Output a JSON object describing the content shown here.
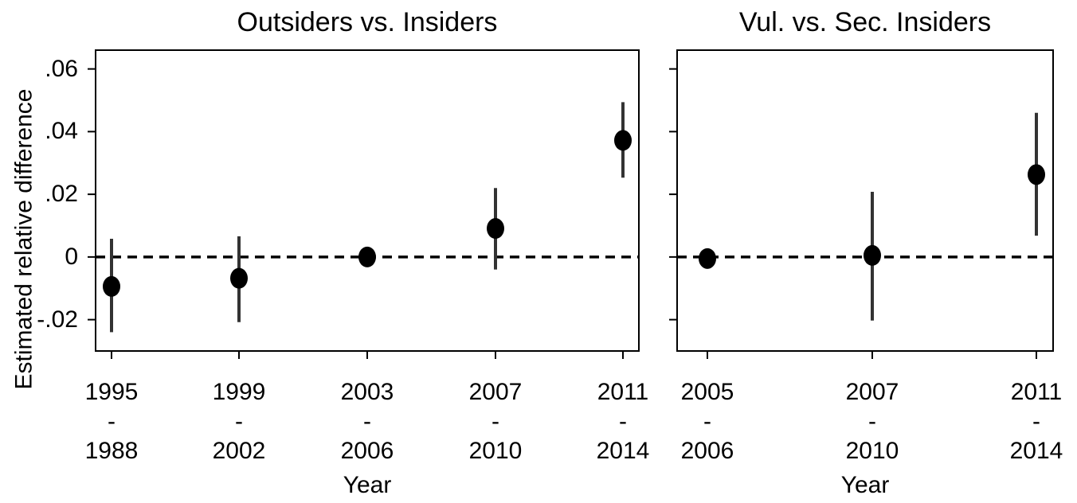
{
  "chart_data": [
    {
      "type": "errorbar",
      "title": "Outsiders vs. Insiders",
      "y_label": "Estimated relative difference",
      "x_label": "Year",
      "categories": [
        "1995\n-\n1988",
        "1999\n-\n2002",
        "2003\n-\n2006",
        "2007\n-\n2010",
        "2011\n-\n2014"
      ],
      "values": [
        -0.0094,
        -0.0068,
        0,
        0.0091,
        0.0372
      ],
      "lower": [
        -0.024,
        -0.0208,
        0,
        -0.004,
        0.0253
      ],
      "upper": [
        0.0058,
        0.0066,
        0,
        0.022,
        0.0494
      ],
      "color": "#000000",
      "bar_color": "#333333",
      "ylim": [
        -0.03,
        0.066
      ],
      "yticks": [
        {
          "value": -0.02,
          "label": "-.02"
        },
        0,
        {
          "value": 0.02,
          "label": ".02"
        },
        {
          "value": 0.04,
          "label": ".04"
        },
        {
          "value": 0.06,
          "label": ".06"
        }
      ],
      "refline": 0
    },
    {
      "type": "errorbar",
      "title": "Vul. vs. Sec. Insiders",
      "x_label": "Year",
      "categories": [
        "2005\n-\n2006",
        "2007\n-\n2010",
        "2011\n-\n2014"
      ],
      "values": [
        -0.0005,
        0.0005,
        0.0263
      ],
      "lower": [
        -0.0005,
        -0.0203,
        0.0068
      ],
      "upper": [
        -0.0005,
        0.0208,
        0.046
      ],
      "color": "#000000",
      "bar_color": "#333333",
      "ylim": [
        -0.03,
        0.066
      ],
      "yticks": [
        -0.02,
        0,
        0.02,
        0.04,
        0.06
      ],
      "refline": 0
    }
  ]
}
